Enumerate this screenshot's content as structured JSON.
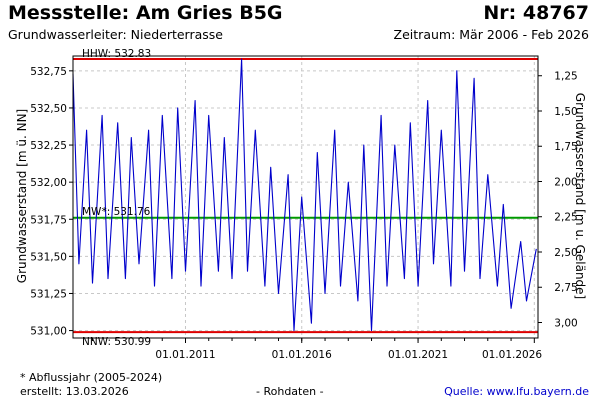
{
  "header": {
    "title": "Messstelle: Am Gries B5G",
    "number": "Nr: 48767",
    "aquifer": "Grundwasserleiter:  Niederterrasse",
    "period": "Zeitraum: Mär 2006 - Feb 2026"
  },
  "footer": {
    "note": "* Abflussjahr (2005-2024)",
    "created": "erstellt:  13.03.2026",
    "data_kind": "- Rohdaten -",
    "source": "Quelle:  www.lfu.bayern.de"
  },
  "colors": {
    "series": "#0000cc",
    "hhw_line": "#dd0000",
    "nnw_line": "#dd0000",
    "mw_line": "#009900",
    "grid": "#c8c8c8"
  },
  "chart_data": {
    "type": "line",
    "title": "",
    "ylabel": "Grundwasserstand [m ü. NN]",
    "ylabel_right": "Grundwasserstand [m u. Gelände]",
    "xlim": [
      "2006-03-01",
      "2026-02-28"
    ],
    "ylim": [
      530.95,
      532.85
    ],
    "ylim_right": [
      1.11,
      3.11
    ],
    "right_axis_inverted": true,
    "grid": true,
    "x_ticks": [
      "01.01.2011",
      "01.01.2016",
      "01.01.2021",
      "01.01.2026"
    ],
    "y_ticks": [
      "531,00",
      "531,25",
      "531,50",
      "531,75",
      "532,00",
      "532,25",
      "532,50",
      "532,75"
    ],
    "y_ticks_right": [
      "1,25",
      "1,50",
      "1,75",
      "2,00",
      "2,25",
      "2,50",
      "2,75",
      "3,00"
    ],
    "reference_lines": [
      {
        "label": "HHW: 532.83",
        "value": 532.83
      },
      {
        "label": "MW*: 531.76",
        "value": 531.76
      },
      {
        "label": "NNW: 530.99",
        "value": 530.99
      }
    ],
    "series": [
      {
        "x": [
          "2006-03",
          "2006-06",
          "2006-10",
          "2007-01",
          "2007-06",
          "2007-09",
          "2008-02",
          "2008-06",
          "2008-09",
          "2009-01",
          "2009-06",
          "2009-09",
          "2010-01",
          "2010-06",
          "2010-09",
          "2011-01",
          "2011-06",
          "2011-09",
          "2012-01",
          "2012-06",
          "2012-09",
          "2013-01",
          "2013-06",
          "2013-09",
          "2014-01",
          "2014-06",
          "2014-09",
          "2015-01",
          "2015-06",
          "2015-09",
          "2016-01",
          "2016-06",
          "2016-09",
          "2017-01",
          "2017-06",
          "2017-09",
          "2018-01",
          "2018-06",
          "2018-09",
          "2019-01",
          "2019-06",
          "2019-09",
          "2020-01",
          "2020-06",
          "2020-09",
          "2021-01",
          "2021-06",
          "2021-09",
          "2022-01",
          "2022-06",
          "2022-09",
          "2023-01",
          "2023-06",
          "2023-09",
          "2024-01",
          "2024-06",
          "2024-09",
          "2025-01",
          "2025-06",
          "2025-09",
          "2026-02"
        ],
        "values": [
          532.73,
          531.45,
          532.35,
          531.32,
          532.45,
          531.35,
          532.4,
          531.35,
          532.3,
          531.45,
          532.35,
          531.3,
          532.45,
          531.35,
          532.5,
          531.4,
          532.55,
          531.3,
          532.45,
          531.4,
          532.3,
          531.35,
          532.83,
          531.4,
          532.35,
          531.3,
          532.1,
          531.25,
          532.05,
          531.0,
          531.9,
          531.05,
          532.2,
          531.25,
          532.35,
          531.3,
          532.0,
          531.2,
          532.25,
          531.0,
          532.45,
          531.3,
          532.25,
          531.35,
          532.4,
          531.3,
          532.55,
          531.45,
          532.35,
          531.3,
          532.75,
          531.4,
          532.7,
          531.35,
          532.05,
          531.3,
          531.85,
          531.15,
          531.6,
          531.2,
          531.55
        ]
      }
    ]
  }
}
